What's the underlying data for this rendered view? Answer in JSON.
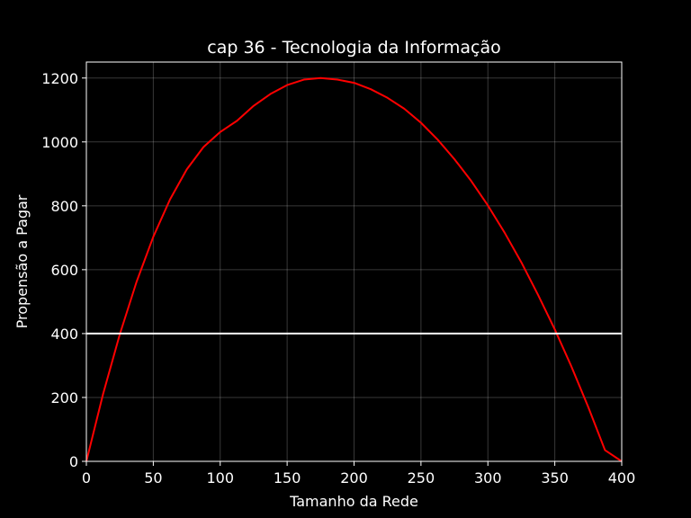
{
  "chart_data": {
    "type": "line",
    "title": "cap 36 - Tecnologia da Informação",
    "xlabel": "Tamanho da Rede",
    "ylabel": "Propensão a Pagar",
    "xlim": [
      0,
      400
    ],
    "ylim": [
      0,
      1250
    ],
    "xticks": [
      0,
      50,
      100,
      150,
      200,
      250,
      300,
      350,
      400
    ],
    "yticks": [
      0,
      200,
      400,
      600,
      800,
      1000,
      1200
    ],
    "grid": true,
    "background": "#000000",
    "series": [
      {
        "color": "#ff0000",
        "x": [
          0,
          12.5,
          25,
          37.5,
          50,
          62.5,
          75,
          87.5,
          100,
          112.5,
          125,
          137.5,
          150,
          162.5,
          175,
          187.5,
          200,
          212.5,
          225,
          237.5,
          250,
          262.5,
          275,
          287.5,
          300,
          312.5,
          325,
          337.5,
          350,
          362.5,
          375,
          387.5,
          400
        ],
        "y": [
          0,
          211,
          398,
          562,
          703,
          820,
          914,
          984,
          1031,
          1066,
          1113,
          1150,
          1178,
          1195,
          1200,
          1195,
          1185,
          1165,
          1138,
          1104,
          1060,
          1007,
          946,
          878,
          801,
          716,
          623,
          521,
          413,
          296,
          170,
          35,
          0
        ]
      },
      {
        "color": "#ffffff",
        "x": [
          0,
          400
        ],
        "y": [
          400,
          400
        ]
      }
    ]
  }
}
